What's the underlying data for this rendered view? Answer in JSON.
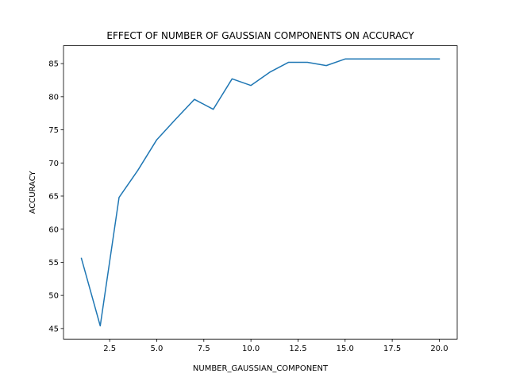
{
  "chart_data": {
    "type": "line",
    "title": "EFFECT OF NUMBER OF GAUSSIAN COMPONENTS ON ACCURACY",
    "xlabel": "NUMBER_GAUSSIAN_COMPONENT",
    "ylabel": "ACCURACY",
    "xlim": [
      0.05,
      20.95
    ],
    "ylim": [
      43.4,
      87.7
    ],
    "x_ticks": [
      2.5,
      5.0,
      7.5,
      10.0,
      12.5,
      15.0,
      17.5,
      20.0
    ],
    "x_tick_labels": [
      "2.5",
      "5.0",
      "7.5",
      "10.0",
      "12.5",
      "15.0",
      "17.5",
      "20.0"
    ],
    "y_ticks": [
      45,
      50,
      55,
      60,
      65,
      70,
      75,
      80,
      85
    ],
    "y_tick_labels": [
      "45",
      "50",
      "55",
      "60",
      "65",
      "70",
      "75",
      "80",
      "85"
    ],
    "grid": false,
    "line_color": "#1f77b4",
    "x": [
      1,
      2,
      3,
      4,
      5,
      6,
      7,
      8,
      9,
      10,
      11,
      12,
      13,
      14,
      15,
      16,
      17,
      18,
      19,
      20
    ],
    "series": [
      {
        "values": [
          55.6,
          45.4,
          64.8,
          68.9,
          73.5,
          76.6,
          79.6,
          78.1,
          82.7,
          81.7,
          83.7,
          85.2,
          85.2,
          84.7,
          85.7,
          85.7,
          85.7,
          85.7,
          85.7,
          85.7
        ]
      }
    ]
  }
}
